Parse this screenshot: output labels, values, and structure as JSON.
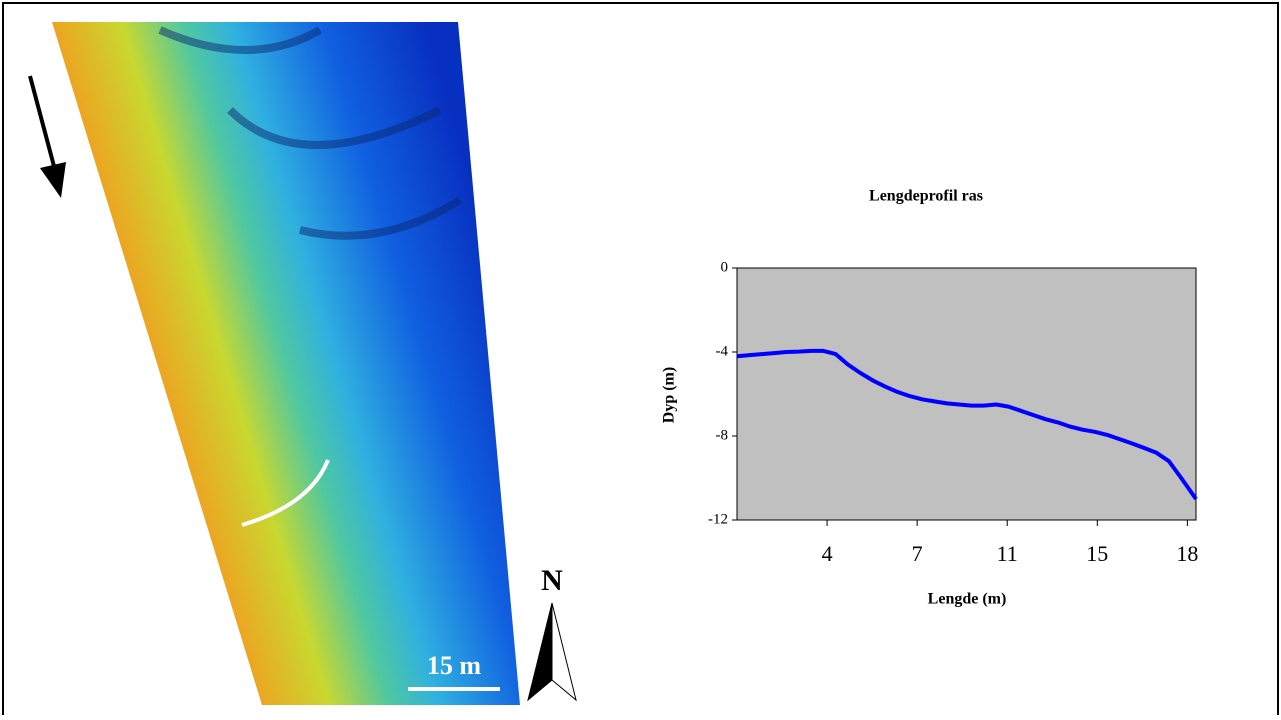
{
  "map": {
    "north": "N",
    "scale": "15 m"
  },
  "chart_data": {
    "type": "line",
    "title": "Lengdeprofil ras",
    "xlabel": "Lengde (m)",
    "ylabel": "Dyp (m)",
    "x": [
      0,
      0.5,
      1,
      1.5,
      2,
      2.5,
      3,
      3.5,
      4,
      4.5,
      5,
      5.5,
      6,
      6.5,
      7,
      7.5,
      8,
      8.5,
      9,
      9.5,
      10,
      10.5,
      11,
      11.5,
      12,
      12.5,
      13,
      13.5,
      14,
      14.5,
      15,
      15.5,
      16,
      16.5,
      17,
      17.5,
      18,
      18.6
    ],
    "values": [
      -4.2,
      -4.15,
      -4.1,
      -4.05,
      -4.0,
      -3.98,
      -3.95,
      -3.95,
      -4.1,
      -4.6,
      -5.0,
      -5.35,
      -5.65,
      -5.9,
      -6.1,
      -6.25,
      -6.35,
      -6.45,
      -6.5,
      -6.55,
      -6.55,
      -6.5,
      -6.6,
      -6.8,
      -7.0,
      -7.2,
      -7.35,
      -7.55,
      -7.7,
      -7.8,
      -7.95,
      -8.15,
      -8.35,
      -8.57,
      -8.8,
      -9.2,
      -10.0,
      -11.0
    ],
    "color": "#0000ff",
    "xlim": [
      0,
      18.6
    ],
    "xticks": [
      {
        "value": 3.65,
        "label": "4"
      },
      {
        "value": 7.3,
        "label": "7"
      },
      {
        "value": 10.95,
        "label": "11"
      },
      {
        "value": 14.6,
        "label": "15"
      },
      {
        "value": 18.25,
        "label": "18"
      }
    ],
    "ylim": [
      -12,
      0
    ],
    "yticks": [
      0,
      -4,
      -8,
      -12
    ]
  }
}
